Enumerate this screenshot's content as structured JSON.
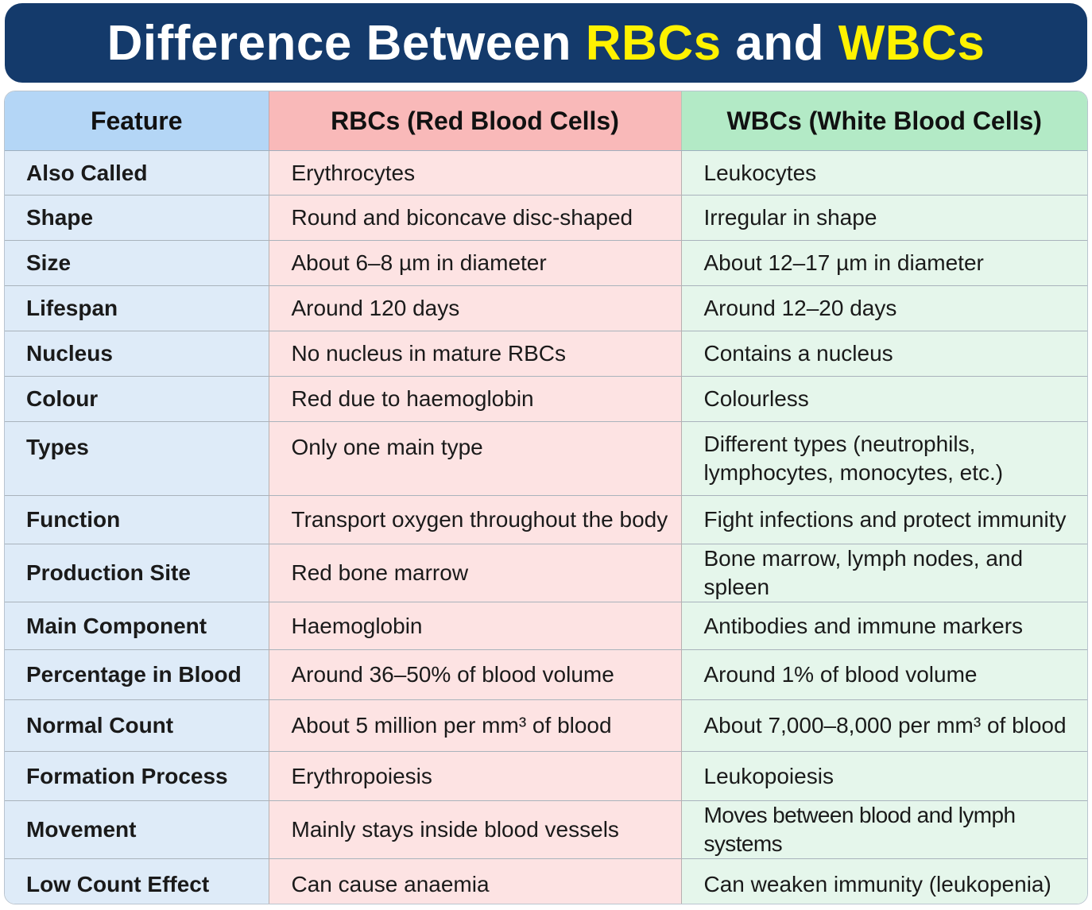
{
  "title": {
    "part1": "Difference Between ",
    "highlight1": "RBCs",
    "part2": " and ",
    "highlight2": "WBCs"
  },
  "colors": {
    "title_bg": "#143a6b",
    "title_highlight": "#fff200",
    "feature_header": "#b4d6f6",
    "rbc_header": "#f9b9b9",
    "wbc_header": "#b3eac6",
    "feature_cell": "#deebf8",
    "rbc_cell": "#fde3e3",
    "wbc_cell": "#e5f6eb"
  },
  "table": {
    "headers": [
      "Feature",
      "RBCs (Red Blood Cells)",
      "WBCs (White Blood Cells)"
    ],
    "rows": [
      {
        "feature": "Also Called",
        "rbc": "Erythrocytes",
        "wbc": "Leukocytes"
      },
      {
        "feature": "Shape",
        "rbc": "Round and biconcave disc-shaped",
        "wbc": "Irregular in shape"
      },
      {
        "feature": "Size",
        "rbc": "About 6–8 µm in diameter",
        "wbc": "About 12–17 µm in diameter"
      },
      {
        "feature": "Lifespan",
        "rbc": "Around 120 days",
        "wbc": "Around 12–20 days"
      },
      {
        "feature": "Nucleus",
        "rbc": "No nucleus in mature RBCs",
        "wbc": "Contains a nucleus"
      },
      {
        "feature": "Colour",
        "rbc": "Red due to haemoglobin",
        "wbc": "Colourless"
      },
      {
        "feature": "Types",
        "rbc": "Only one main type",
        "wbc": "Different types (neutrophils, lymphocytes, monocytes, etc.)"
      },
      {
        "feature": "Function",
        "rbc": "Transport oxygen throughout the body",
        "wbc": "Fight infections and protect immunity"
      },
      {
        "feature": "Production Site",
        "rbc": "Red bone marrow",
        "wbc": "Bone marrow, lymph nodes, and spleen"
      },
      {
        "feature": "Main Component",
        "rbc": "Haemoglobin",
        "wbc": "Antibodies and immune markers"
      },
      {
        "feature": "Percentage in Blood",
        "rbc": "Around 36–50% of blood volume",
        "wbc": "Around 1% of blood volume"
      },
      {
        "feature": "Normal Count",
        "rbc": "About 5 million per mm³ of blood",
        "wbc": "About 7,000–8,000 per mm³ of blood"
      },
      {
        "feature": "Formation Process",
        "rbc": "Erythropoiesis",
        "wbc": "Leukopoiesis"
      },
      {
        "feature": "Movement",
        "rbc": "Mainly stays inside blood vessels",
        "wbc": "Moves between blood and lymph systems"
      },
      {
        "feature": "Low Count Effect",
        "rbc": "Can cause anaemia",
        "wbc": "Can weaken immunity (leukopenia)"
      }
    ]
  }
}
